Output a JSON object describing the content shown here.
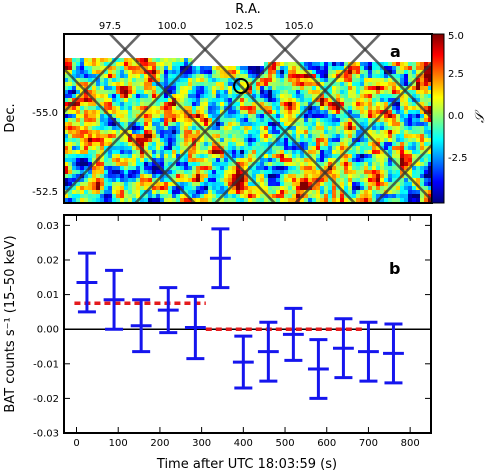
{
  "chart_data": [
    {
      "type": "heatmap",
      "panel_label": "a",
      "xlabel": "R.A.",
      "ylabel": "Dec.",
      "x_ticks": [
        "97.5",
        "100.0",
        "102.5",
        "105.0"
      ],
      "y_ticks": [
        "-55.0",
        "-52.5"
      ],
      "colorbar": {
        "label": "𝒮",
        "min": -5.0,
        "max": 5.0,
        "ticks": [
          "5.0",
          "2.5",
          "0.0",
          "-2.5"
        ],
        "colormap": "jet"
      },
      "colors": {
        "grid_lines": "#333333",
        "marker_circle": "#000000"
      }
    },
    {
      "type": "scatter",
      "panel_label": "b",
      "xlabel": "Time after UTC 18:03:59 (s)",
      "ylabel": "BAT counts s⁻¹ (15–50 keV)",
      "xlim": [
        -30,
        850
      ],
      "ylim": [
        -0.03,
        0.033
      ],
      "x_ticks": [
        "0",
        "100",
        "200",
        "300",
        "400",
        "500",
        "600",
        "700",
        "800"
      ],
      "y_ticks": [
        "0.03",
        "0.02",
        "0.01",
        "0.00",
        "-0.01",
        "-0.02",
        "-0.03"
      ],
      "series": [
        {
          "x": [
            25,
            90,
            155,
            220,
            285,
            345,
            400,
            460,
            520,
            580,
            640,
            700,
            760
          ],
          "x_err": 25,
          "y": [
            0.0135,
            0.0085,
            0.001,
            0.0055,
            0.0005,
            0.0205,
            -0.0095,
            -0.0065,
            -0.0015,
            -0.0115,
            -0.0055,
            -0.0065,
            -0.007
          ],
          "y_err": [
            0.0085,
            0.0085,
            0.0075,
            0.0065,
            0.009,
            0.0085,
            0.0075,
            0.0085,
            0.0075,
            0.0085,
            0.0085,
            0.0085,
            0.0085
          ]
        }
      ],
      "mean_levels": [
        {
          "x_start": -5,
          "x_end": 310,
          "y": 0.0075
        },
        {
          "x_start": 310,
          "x_end": 690,
          "y": 0.0
        }
      ],
      "colors": {
        "points": "#1515ee",
        "mean_line": "#e41a1c",
        "zero_line": "#000000"
      }
    }
  ]
}
